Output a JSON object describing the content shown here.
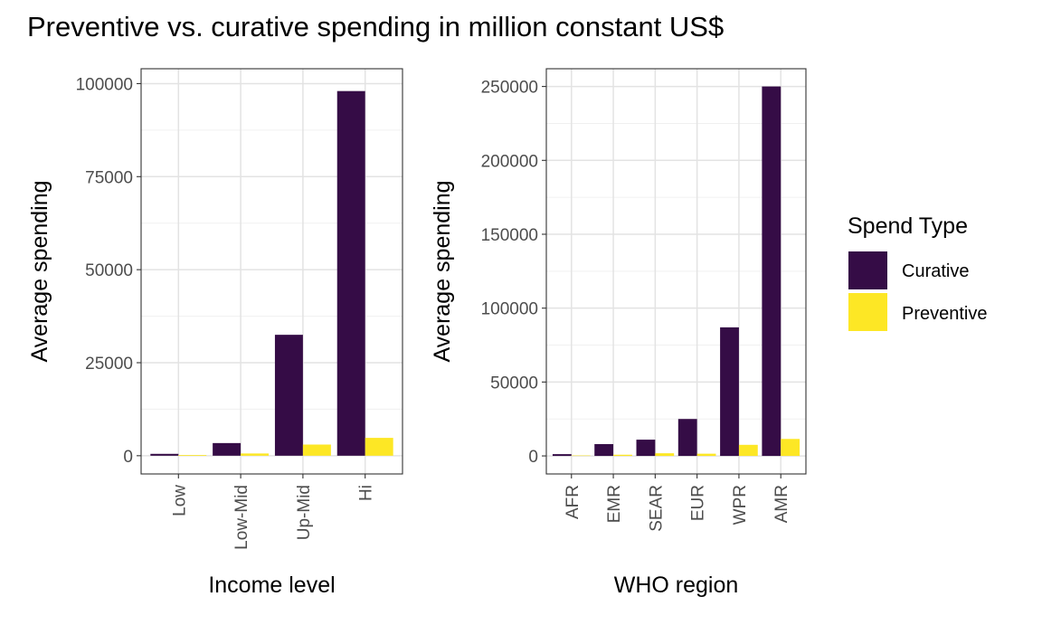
{
  "title": "Preventive vs. curative spending in million constant US$",
  "legend": {
    "title": "Spend Type",
    "items": [
      {
        "label": "Curative",
        "color": "#350C46"
      },
      {
        "label": "Preventive",
        "color": "#FDE725"
      }
    ]
  },
  "chart_data": [
    {
      "type": "bar",
      "categories": [
        "Low",
        "Low-Mid",
        "Up-Mid",
        "Hi"
      ],
      "series": [
        {
          "name": "Curative",
          "values": [
            500,
            3400,
            32500,
            98000
          ]
        },
        {
          "name": "Preventive",
          "values": [
            200,
            600,
            3000,
            4800
          ]
        }
      ],
      "xlabel": "Income level",
      "ylabel": "Average spending",
      "ylim": [
        -4900,
        104000
      ],
      "yticks": [
        0,
        25000,
        50000,
        75000,
        100000
      ],
      "ytick_labels": [
        "0",
        "25000",
        "50000",
        "75000",
        "100000"
      ],
      "grid": true,
      "legend": "right"
    },
    {
      "type": "bar",
      "categories": [
        "AFR",
        "EMR",
        "SEAR",
        "EUR",
        "WPR",
        "AMR"
      ],
      "series": [
        {
          "name": "Curative",
          "values": [
            1200,
            8000,
            11000,
            25000,
            87000,
            250000
          ]
        },
        {
          "name": "Preventive",
          "values": [
            300,
            800,
            1800,
            1500,
            7500,
            11500
          ]
        }
      ],
      "xlabel": "WHO region",
      "ylabel": "Average spending",
      "ylim": [
        -12200,
        262000
      ],
      "yticks": [
        0,
        50000,
        100000,
        150000,
        200000,
        250000
      ],
      "ytick_labels": [
        "0",
        "50000",
        "100000",
        "150000",
        "200000",
        "250000"
      ],
      "grid": true,
      "legend": "right"
    }
  ]
}
